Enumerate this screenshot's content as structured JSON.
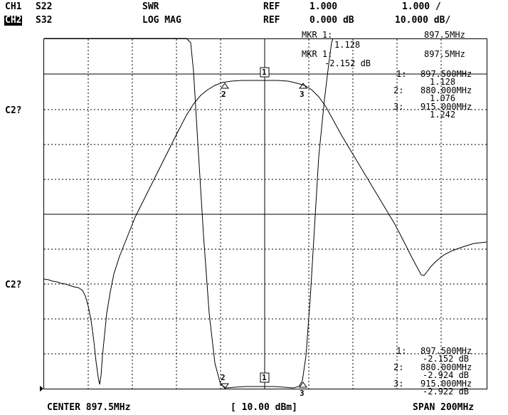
{
  "header": {
    "ch1": {
      "name": "CH1",
      "param": "S22",
      "format": "SWR",
      "ref_label": "REF",
      "ref_value": "1.000",
      "scale": "1.000 /"
    },
    "ch2": {
      "name": "CH2",
      "param": "S32",
      "format": "LOG MAG",
      "ref_label": "REF",
      "ref_value": "0.000 dB",
      "scale": "10.000 dB/"
    }
  },
  "left_labels": {
    "upper": "C2?",
    "lower": "C2?"
  },
  "overlay_top": {
    "mkr1_label": "MKR  1:",
    "mkr1_freq": "897.5MHz",
    "mkr1_val": "1.128",
    "mkr2_label": "MKR  1:",
    "mkr2_freq": "897.5MHz",
    "mkr2_val": "-2.152 dB"
  },
  "marker_list_ch1": [
    {
      "num": "1:",
      "freq": "897.500MHz",
      "value": "1.128"
    },
    {
      "num": "2:",
      "freq": "880.000MHz",
      "value": "1.076"
    },
    {
      "num": "3:",
      "freq": "915.000MHz",
      "value": "1.242"
    }
  ],
  "marker_list_ch2": [
    {
      "num": "1:",
      "freq": "897.500MHz",
      "value": "-2.152 dB"
    },
    {
      "num": "2:",
      "freq": "880.000MHz",
      "value": "-2.924 dB"
    },
    {
      "num": "3:",
      "freq": "915.000MHz",
      "value": "-2.922 dB"
    }
  ],
  "trace_markers": {
    "m1": "1",
    "m2": "2",
    "m3": "3"
  },
  "footer": {
    "center": "CENTER 897.5MHz",
    "power": "[ 10.00 dBm]",
    "span": "SPAN 200MHz"
  },
  "colors": {
    "trace": "#000000",
    "grid": "#000000",
    "background": "#ffffff"
  }
}
